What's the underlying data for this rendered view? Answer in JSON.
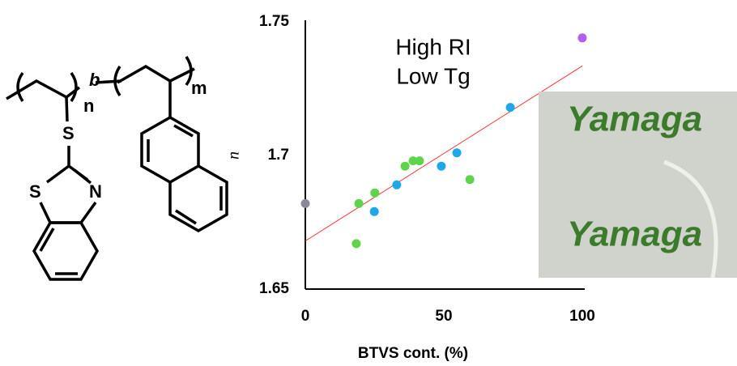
{
  "chart_data": {
    "type": "scatter",
    "x_label": "BTVS cont. (%)",
    "y_label": "n",
    "annotations": [
      "High RI",
      "Low Tg"
    ],
    "xlim": [
      0,
      100
    ],
    "xticks": [
      0,
      50,
      100
    ],
    "ylim": [
      1.65,
      1.75
    ],
    "yticks": [
      1.65,
      1.7,
      1.75
    ],
    "series": [
      {
        "color": "#8a8a9a",
        "x": [
          0
        ],
        "values": [
          1.682
        ]
      },
      {
        "color": "#5fd44a",
        "x": [
          18.4,
          19.3,
          25.1,
          36,
          38.9,
          41.2,
          59.4
        ],
        "values": [
          1.667,
          1.682,
          1.686,
          1.696,
          1.698,
          1.698,
          1.691
        ]
      },
      {
        "color": "#1ea8e8",
        "x": [
          24.9,
          33,
          49.1,
          54.7,
          74
        ],
        "values": [
          1.679,
          1.689,
          1.696,
          1.701,
          1.718
        ]
      },
      {
        "color": "#b45ef0",
        "x": [
          100
        ],
        "values": [
          1.744
        ]
      }
    ],
    "trendline": {
      "color": "#ff3030",
      "x": [
        0,
        100
      ],
      "values": [
        1.668,
        1.7335
      ]
    }
  },
  "structure": {
    "labels": [
      "n",
      "b",
      "m",
      "S",
      "S",
      "N"
    ]
  },
  "photo": {
    "labels": [
      "Yamaga",
      "Yamaga"
    ]
  }
}
